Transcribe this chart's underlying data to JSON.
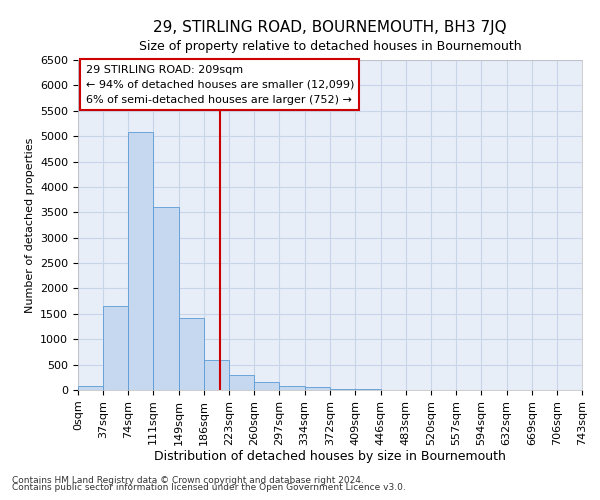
{
  "title": "29, STIRLING ROAD, BOURNEMOUTH, BH3 7JQ",
  "subtitle": "Size of property relative to detached houses in Bournemouth",
  "xlabel": "Distribution of detached houses by size in Bournemouth",
  "ylabel": "Number of detached properties",
  "footnote1": "Contains HM Land Registry data © Crown copyright and database right 2024.",
  "footnote2": "Contains public sector information licensed under the Open Government Licence v3.0.",
  "annotation_line1": "29 STIRLING ROAD: 209sqm",
  "annotation_line2": "← 94% of detached houses are smaller (12,099)",
  "annotation_line3": "6% of semi-detached houses are larger (752) →",
  "property_size": 209,
  "bin_edges": [
    0,
    37,
    74,
    111,
    149,
    186,
    223,
    260,
    297,
    334,
    372,
    409,
    446,
    483,
    520,
    557,
    594,
    632,
    669,
    706,
    743
  ],
  "bin_labels": [
    "0sqm",
    "37sqm",
    "74sqm",
    "111sqm",
    "149sqm",
    "186sqm",
    "223sqm",
    "260sqm",
    "297sqm",
    "334sqm",
    "372sqm",
    "409sqm",
    "446sqm",
    "483sqm",
    "520sqm",
    "557sqm",
    "594sqm",
    "632sqm",
    "669sqm",
    "706sqm",
    "743sqm"
  ],
  "counts": [
    75,
    1650,
    5080,
    3600,
    1420,
    600,
    300,
    150,
    75,
    50,
    20,
    10,
    0,
    0,
    0,
    0,
    0,
    0,
    0,
    0
  ],
  "bar_color": "#c5d8ef",
  "bar_edge_color": "#5b9bd5",
  "vline_color": "#cc0000",
  "grid_color": "#c8d4e8",
  "background_color": "#e8eef8",
  "annotation_box_color": "#ffffff",
  "annotation_box_edge": "#cc0000",
  "ylim": [
    0,
    6500
  ],
  "yticks": [
    0,
    500,
    1000,
    1500,
    2000,
    2500,
    3000,
    3500,
    4000,
    4500,
    5000,
    5500,
    6000,
    6500
  ],
  "title_fontsize": 11,
  "subtitle_fontsize": 9,
  "ylabel_fontsize": 8,
  "xlabel_fontsize": 9,
  "tick_fontsize": 8,
  "annotation_fontsize": 8,
  "footnote_fontsize": 6.5
}
